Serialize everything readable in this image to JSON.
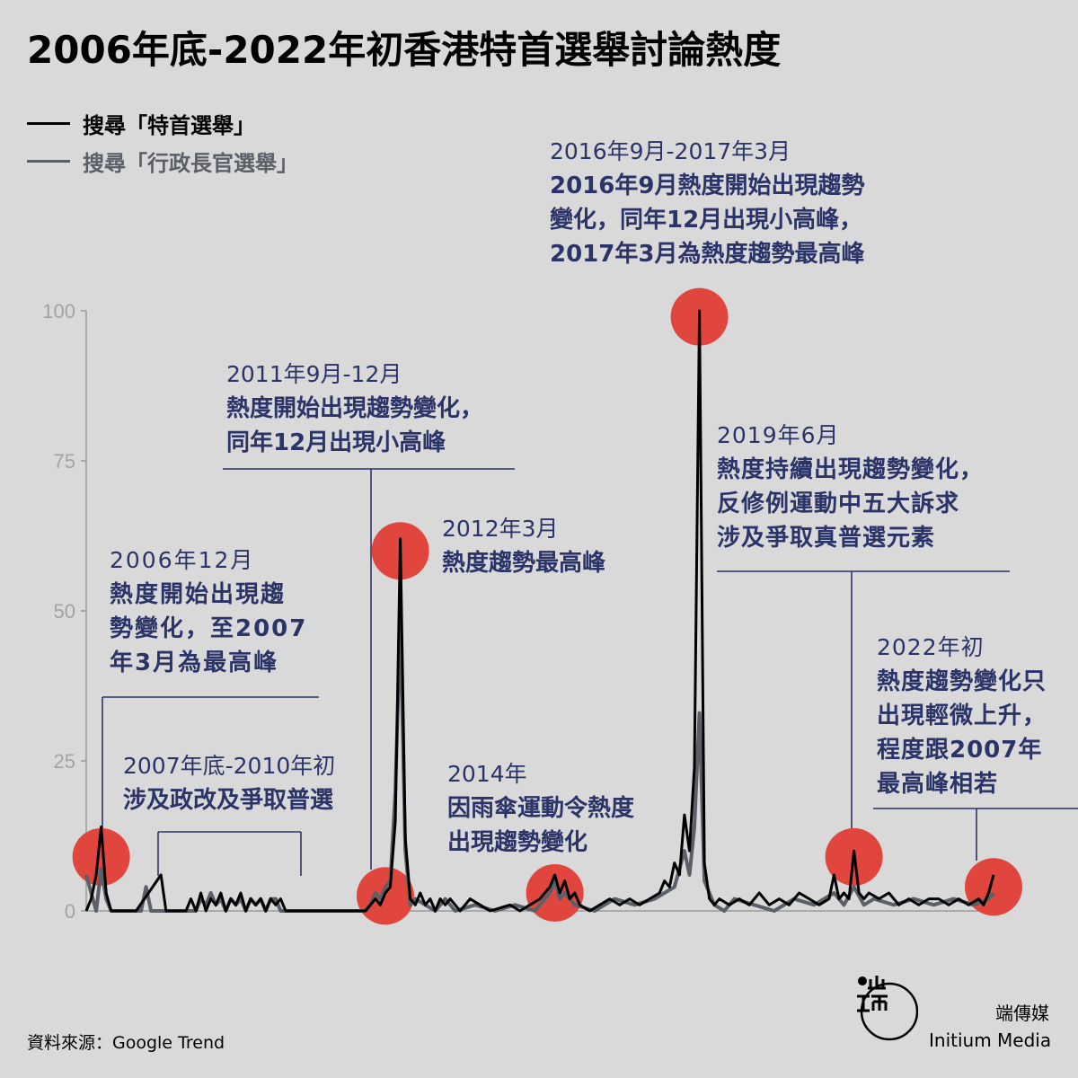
{
  "title": "2006年底-2022年初香港特首選舉討論熱度",
  "legend": [
    {
      "label": "搜尋「特首選舉」",
      "color": "#000000"
    },
    {
      "label": "搜尋「行政長官選舉」",
      "color": "#5b6068"
    }
  ],
  "chart_data": {
    "type": "line",
    "title": "2006年底-2022年初香港特首選舉討論熱度",
    "xlabel": "",
    "ylabel": "",
    "ylim": [
      0,
      100
    ],
    "yticks": [
      0,
      25,
      50,
      75,
      100
    ],
    "x_range": [
      "2006-12",
      "2022-02"
    ],
    "grid": false,
    "legend_position": "top-left",
    "series": [
      {
        "name": "搜尋「特首選舉」",
        "color": "#000000",
        "points": [
          [
            "2006-12",
            0
          ],
          [
            "2007-01",
            2
          ],
          [
            "2007-02",
            6
          ],
          [
            "2007-03",
            14
          ],
          [
            "2007-04",
            3
          ],
          [
            "2007-05",
            0
          ],
          [
            "2007-10",
            0
          ],
          [
            "2008-03",
            6
          ],
          [
            "2008-04",
            0
          ],
          [
            "2008-08",
            0
          ],
          [
            "2008-09",
            2
          ],
          [
            "2008-10",
            0
          ],
          [
            "2008-11",
            3
          ],
          [
            "2008-12",
            0
          ],
          [
            "2009-01",
            2
          ],
          [
            "2009-02",
            1
          ],
          [
            "2009-03",
            3
          ],
          [
            "2009-04",
            0
          ],
          [
            "2009-05",
            2
          ],
          [
            "2009-06",
            1
          ],
          [
            "2009-07",
            3
          ],
          [
            "2009-08",
            0
          ],
          [
            "2009-09",
            2
          ],
          [
            "2009-10",
            1
          ],
          [
            "2009-11",
            2
          ],
          [
            "2009-12",
            0
          ],
          [
            "2010-01",
            2
          ],
          [
            "2010-02",
            1
          ],
          [
            "2010-03",
            2
          ],
          [
            "2010-04",
            0
          ],
          [
            "2011-08",
            0
          ],
          [
            "2011-09",
            1
          ],
          [
            "2011-10",
            2
          ],
          [
            "2011-11",
            1
          ],
          [
            "2011-12",
            3
          ],
          [
            "2012-01",
            4
          ],
          [
            "2012-02",
            15
          ],
          [
            "2012-03",
            62
          ],
          [
            "2012-04",
            12
          ],
          [
            "2012-05",
            2
          ],
          [
            "2012-06",
            1
          ],
          [
            "2012-07",
            3
          ],
          [
            "2012-08",
            1
          ],
          [
            "2012-09",
            2
          ],
          [
            "2012-10",
            0
          ],
          [
            "2012-11",
            2
          ],
          [
            "2012-12",
            1
          ],
          [
            "2013-01",
            2
          ],
          [
            "2013-03",
            0
          ],
          [
            "2013-05",
            2
          ],
          [
            "2013-07",
            1
          ],
          [
            "2013-09",
            0
          ],
          [
            "2014-01",
            1
          ],
          [
            "2014-03",
            0
          ],
          [
            "2014-05",
            1
          ],
          [
            "2014-07",
            2
          ],
          [
            "2014-09",
            4
          ],
          [
            "2014-10",
            6
          ],
          [
            "2014-11",
            3
          ],
          [
            "2014-12",
            5
          ],
          [
            "2015-01",
            2
          ],
          [
            "2015-02",
            3
          ],
          [
            "2015-03",
            1
          ],
          [
            "2015-05",
            0
          ],
          [
            "2015-07",
            1
          ],
          [
            "2015-09",
            2
          ],
          [
            "2015-11",
            1
          ],
          [
            "2016-01",
            2
          ],
          [
            "2016-03",
            1
          ],
          [
            "2016-05",
            2
          ],
          [
            "2016-07",
            3
          ],
          [
            "2016-08",
            5
          ],
          [
            "2016-09",
            4
          ],
          [
            "2016-10",
            8
          ],
          [
            "2016-11",
            6
          ],
          [
            "2016-12",
            16
          ],
          [
            "2017-01",
            10
          ],
          [
            "2017-02",
            24
          ],
          [
            "2017-03",
            100
          ],
          [
            "2017-04",
            8
          ],
          [
            "2017-05",
            2
          ],
          [
            "2017-06",
            1
          ],
          [
            "2017-07",
            2
          ],
          [
            "2017-09",
            1
          ],
          [
            "2017-11",
            2
          ],
          [
            "2018-01",
            1
          ],
          [
            "2018-03",
            3
          ],
          [
            "2018-05",
            1
          ],
          [
            "2018-07",
            2
          ],
          [
            "2018-09",
            1
          ],
          [
            "2018-11",
            3
          ],
          [
            "2019-01",
            2
          ],
          [
            "2019-03",
            1
          ],
          [
            "2019-05",
            2
          ],
          [
            "2019-06",
            6
          ],
          [
            "2019-07",
            2
          ],
          [
            "2019-08",
            3
          ],
          [
            "2019-09",
            2
          ],
          [
            "2019-10",
            10
          ],
          [
            "2019-11",
            3
          ],
          [
            "2019-12",
            2
          ],
          [
            "2020-01",
            3
          ],
          [
            "2020-03",
            2
          ],
          [
            "2020-05",
            3
          ],
          [
            "2020-07",
            1
          ],
          [
            "2020-09",
            2
          ],
          [
            "2020-11",
            1
          ],
          [
            "2021-01",
            2
          ],
          [
            "2021-03",
            2
          ],
          [
            "2021-05",
            1
          ],
          [
            "2021-07",
            2
          ],
          [
            "2021-09",
            1
          ],
          [
            "2021-11",
            2
          ],
          [
            "2021-12",
            1
          ],
          [
            "2022-01",
            3
          ],
          [
            "2022-02",
            6
          ]
        ]
      },
      {
        "name": "搜尋「行政長官選舉」",
        "color": "#5b6068",
        "points": [
          [
            "2006-12",
            6
          ],
          [
            "2007-01",
            3
          ],
          [
            "2007-02",
            0
          ],
          [
            "2007-03",
            7
          ],
          [
            "2007-04",
            2
          ],
          [
            "2007-05",
            0
          ],
          [
            "2007-11",
            0
          ],
          [
            "2007-12",
            4
          ],
          [
            "2008-01",
            0
          ],
          [
            "2008-10",
            0
          ],
          [
            "2008-11",
            2
          ],
          [
            "2008-12",
            1
          ],
          [
            "2009-01",
            3
          ],
          [
            "2009-02",
            1
          ],
          [
            "2009-03",
            2
          ],
          [
            "2009-04",
            0
          ],
          [
            "2009-05",
            2
          ],
          [
            "2009-06",
            1
          ],
          [
            "2009-07",
            2
          ],
          [
            "2009-08",
            0
          ],
          [
            "2009-09",
            2
          ],
          [
            "2009-10",
            1
          ],
          [
            "2009-11",
            2
          ],
          [
            "2009-12",
            0
          ],
          [
            "2010-01",
            2
          ],
          [
            "2010-02",
            2
          ],
          [
            "2010-03",
            0
          ],
          [
            "2011-08",
            0
          ],
          [
            "2011-09",
            1
          ],
          [
            "2011-10",
            3
          ],
          [
            "2011-11",
            2
          ],
          [
            "2011-12",
            4
          ],
          [
            "2012-01",
            5
          ],
          [
            "2012-02",
            20
          ],
          [
            "2012-03",
            48
          ],
          [
            "2012-04",
            10
          ],
          [
            "2012-05",
            1
          ],
          [
            "2012-06",
            2
          ],
          [
            "2012-08",
            1
          ],
          [
            "2012-10",
            0
          ],
          [
            "2012-12",
            2
          ],
          [
            "2013-02",
            0
          ],
          [
            "2013-06",
            1
          ],
          [
            "2013-10",
            0
          ],
          [
            "2014-02",
            1
          ],
          [
            "2014-06",
            0
          ],
          [
            "2014-08",
            2
          ],
          [
            "2014-09",
            3
          ],
          [
            "2014-10",
            5
          ],
          [
            "2014-11",
            2
          ],
          [
            "2014-12",
            3
          ],
          [
            "2015-02",
            1
          ],
          [
            "2015-06",
            0
          ],
          [
            "2015-10",
            2
          ],
          [
            "2016-02",
            1
          ],
          [
            "2016-06",
            2
          ],
          [
            "2016-08",
            3
          ],
          [
            "2016-10",
            4
          ],
          [
            "2016-12",
            10
          ],
          [
            "2017-01",
            6
          ],
          [
            "2017-02",
            14
          ],
          [
            "2017-03",
            33
          ],
          [
            "2017-04",
            5
          ],
          [
            "2017-06",
            1
          ],
          [
            "2017-08",
            0
          ],
          [
            "2017-10",
            2
          ],
          [
            "2018-02",
            1
          ],
          [
            "2018-06",
            0
          ],
          [
            "2018-10",
            2
          ],
          [
            "2019-02",
            1
          ],
          [
            "2019-06",
            3
          ],
          [
            "2019-08",
            1
          ],
          [
            "2019-10",
            4
          ],
          [
            "2019-12",
            1
          ],
          [
            "2020-02",
            2
          ],
          [
            "2020-06",
            1
          ],
          [
            "2020-10",
            2
          ],
          [
            "2021-02",
            1
          ],
          [
            "2021-06",
            2
          ],
          [
            "2021-10",
            1
          ],
          [
            "2022-01",
            2
          ],
          [
            "2022-02",
            3
          ]
        ]
      }
    ],
    "highlights": [
      {
        "x": "2007-03",
        "y": 9
      },
      {
        "x": "2011-12",
        "y": 2.5
      },
      {
        "x": "2012-03",
        "y": 60
      },
      {
        "x": "2014-10",
        "y": 3
      },
      {
        "x": "2017-03",
        "y": 99
      },
      {
        "x": "2019-10",
        "y": 9
      },
      {
        "x": "2022-02",
        "y": 4
      }
    ],
    "annotations": [
      {
        "period": "2006年12月",
        "text": "熱度開始出現趨\n勢變化，至2007\n年3月為最高峰"
      },
      {
        "period": "2007年底-2010年初",
        "text": "涉及政改及爭取普選"
      },
      {
        "period": "2011年9月-12月",
        "text": "熱度開始出現趨勢變化，\n同年12月出現小高峰"
      },
      {
        "period": "2012年3月",
        "text": "熱度趨勢最高峰"
      },
      {
        "period": "2014年",
        "text": "因雨傘運動令熱度\n出現趨勢變化"
      },
      {
        "period": "2016年9月-2017年3月",
        "text": "2016年9月熱度開始出現趨勢\n變化，同年12月出現小高峰，\n2017年3月為熱度趨勢最高峰"
      },
      {
        "period": "2019年6月",
        "text": "熱度持續出現趨勢變化，\n反修例運動中五大訴求\n涉及爭取真普選元素"
      },
      {
        "period": "2022年初",
        "text": "熱度趨勢變化只\n出現輕微上升，\n程度跟2007年\n最高峰相若"
      }
    ]
  },
  "source": "資料來源：Google Trend",
  "brand": {
    "zh": "端傳媒",
    "en": "Initium Media"
  },
  "colors": {
    "highlight": "#e0463e",
    "annotation": "#2b3468",
    "axis": "#9a9a9a",
    "background": "#d9d9d9"
  }
}
